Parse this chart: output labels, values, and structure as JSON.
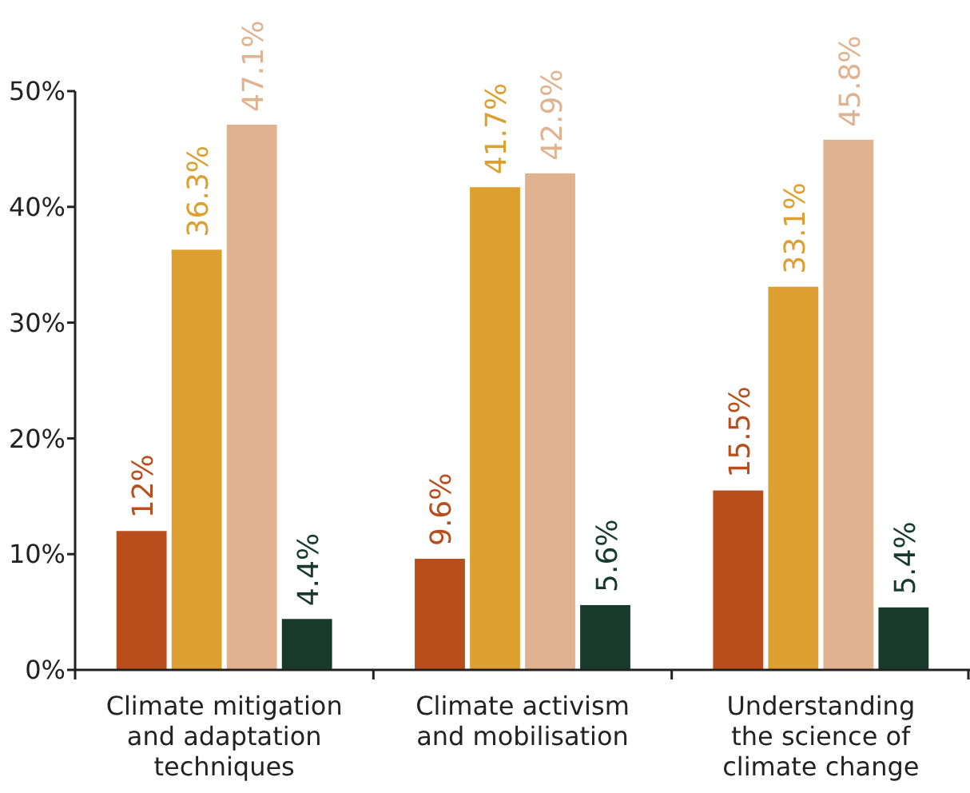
{
  "chart_data": {
    "type": "bar",
    "categories": [
      "Climate mitigation\nand adaptation\ntechniques",
      "Climate activism\nand mobilisation",
      "Understanding\nthe science of\nclimate change"
    ],
    "series": [
      {
        "color": "#b94e1c",
        "values": [
          12,
          9.6,
          15.5
        ],
        "value_labels": [
          "12%",
          "9.6%",
          "15.5%"
        ]
      },
      {
        "color": "#dd9f2f",
        "values": [
          36.3,
          41.7,
          33.1
        ],
        "value_labels": [
          "36.3%",
          "41.7%",
          "33.1%"
        ]
      },
      {
        "color": "#e0b28f",
        "values": [
          47.1,
          42.9,
          45.8
        ],
        "value_labels": [
          "47.1%",
          "42.9%",
          "45.8%"
        ]
      },
      {
        "color": "#173a2c",
        "values": [
          4.4,
          5.6,
          5.4
        ],
        "value_labels": [
          "4.4%",
          "5.6%",
          "5.4%"
        ]
      }
    ],
    "ylim": [
      0,
      50
    ],
    "yticks": [
      {
        "value": 0,
        "label": "0%"
      },
      {
        "value": 10,
        "label": "10%"
      },
      {
        "value": 20,
        "label": "20%"
      },
      {
        "value": 30,
        "label": "30%"
      },
      {
        "value": 40,
        "label": "40%"
      },
      {
        "value": 50,
        "label": "50%"
      }
    ],
    "grid": false
  }
}
